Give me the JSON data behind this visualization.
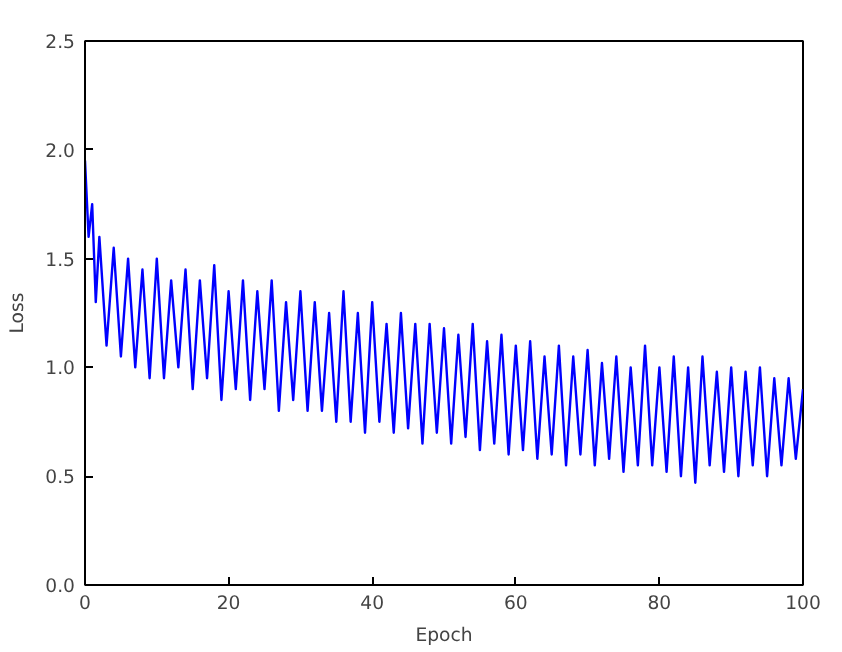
{
  "chart_data": {
    "type": "line",
    "xlabel": "Epoch",
    "ylabel": "Loss",
    "x": [
      0,
      0.5,
      1,
      1.5,
      2,
      3,
      4,
      5,
      6,
      7,
      8,
      9,
      10,
      11,
      12,
      13,
      14,
      15,
      16,
      17,
      18,
      19,
      20,
      21,
      22,
      23,
      24,
      25,
      26,
      27,
      28,
      29,
      30,
      31,
      32,
      33,
      34,
      35,
      36,
      37,
      38,
      39,
      40,
      41,
      42,
      43,
      44,
      45,
      46,
      47,
      48,
      49,
      50,
      51,
      52,
      53,
      54,
      55,
      56,
      57,
      58,
      59,
      60,
      61,
      62,
      63,
      64,
      65,
      66,
      67,
      68,
      69,
      70,
      71,
      72,
      73,
      74,
      75,
      76,
      77,
      78,
      79,
      80,
      81,
      82,
      83,
      84,
      85,
      86,
      87,
      88,
      89,
      90,
      91,
      92,
      93,
      94,
      95,
      96,
      97,
      98,
      99,
      100
    ],
    "series": [
      {
        "color": "#0000ff",
        "values": [
          1.95,
          1.6,
          1.75,
          1.3,
          1.6,
          1.1,
          1.55,
          1.05,
          1.5,
          1.0,
          1.45,
          0.95,
          1.5,
          0.95,
          1.4,
          1.0,
          1.45,
          0.9,
          1.4,
          0.95,
          1.47,
          0.85,
          1.35,
          0.9,
          1.4,
          0.85,
          1.35,
          0.9,
          1.4,
          0.8,
          1.3,
          0.85,
          1.35,
          0.8,
          1.3,
          0.8,
          1.25,
          0.75,
          1.35,
          0.75,
          1.25,
          0.7,
          1.3,
          0.75,
          1.2,
          0.7,
          1.25,
          0.72,
          1.2,
          0.65,
          1.2,
          0.7,
          1.18,
          0.65,
          1.15,
          0.68,
          1.2,
          0.62,
          1.12,
          0.65,
          1.15,
          0.6,
          1.1,
          0.62,
          1.12,
          0.58,
          1.05,
          0.6,
          1.1,
          0.55,
          1.05,
          0.6,
          1.08,
          0.55,
          1.02,
          0.58,
          1.05,
          0.52,
          1.0,
          0.55,
          1.1,
          0.55,
          1.0,
          0.52,
          1.05,
          0.5,
          1.0,
          0.47,
          1.05,
          0.55,
          0.98,
          0.52,
          1.0,
          0.5,
          0.98,
          0.55,
          1.0,
          0.5,
          0.95,
          0.55,
          0.95,
          0.58,
          0.9
        ]
      }
    ],
    "xlim": [
      0,
      100
    ],
    "xticks": [
      0,
      20,
      40,
      60,
      80,
      100
    ],
    "ylim": [
      0,
      2.5
    ],
    "yticks": [
      {
        "value": 0,
        "label": "0.0"
      },
      {
        "value": 0.5,
        "label": "0.5"
      },
      {
        "value": 1,
        "label": "1.0"
      },
      {
        "value": 1.5,
        "label": "1.5"
      },
      {
        "value": 2,
        "label": "2.0"
      },
      {
        "value": 2.5,
        "label": "2.5"
      }
    ],
    "grid": false,
    "line_style": "solid"
  }
}
